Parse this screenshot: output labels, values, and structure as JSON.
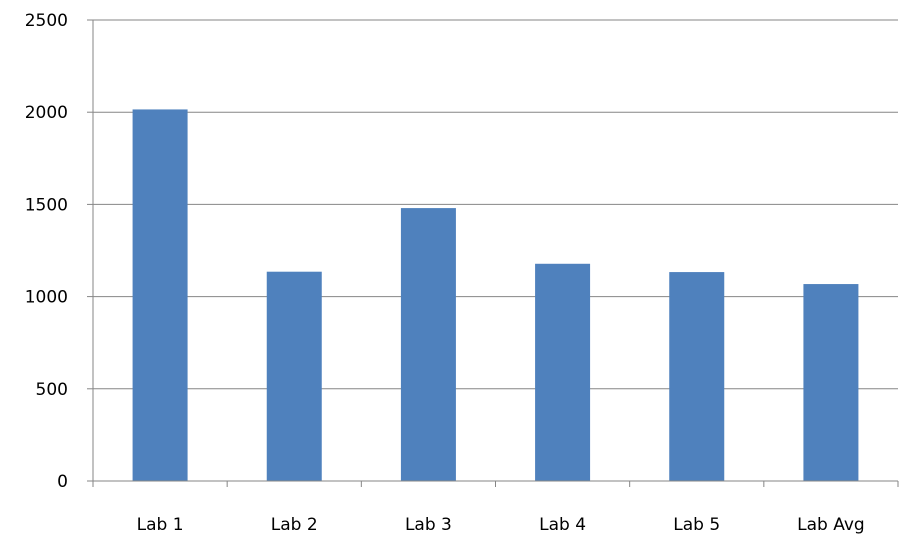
{
  "chart_data": {
    "type": "bar",
    "title": "",
    "xlabel": "",
    "ylabel": "",
    "categories": [
      "Lab 1",
      "Lab 2",
      "Lab 3",
      "Lab 4",
      "Lab 5",
      "Lab Avg"
    ],
    "values": [
      2015,
      1135,
      1480,
      1178,
      1133,
      1068
    ],
    "ylim": [
      0,
      2500
    ],
    "yticks": [
      "0",
      "500",
      "1000",
      "1500",
      "2000",
      "2500"
    ],
    "grid": true,
    "legend": "none",
    "colors": {
      "bar": "#4F81BD",
      "grid": "#868686",
      "axis": "#868686"
    }
  }
}
